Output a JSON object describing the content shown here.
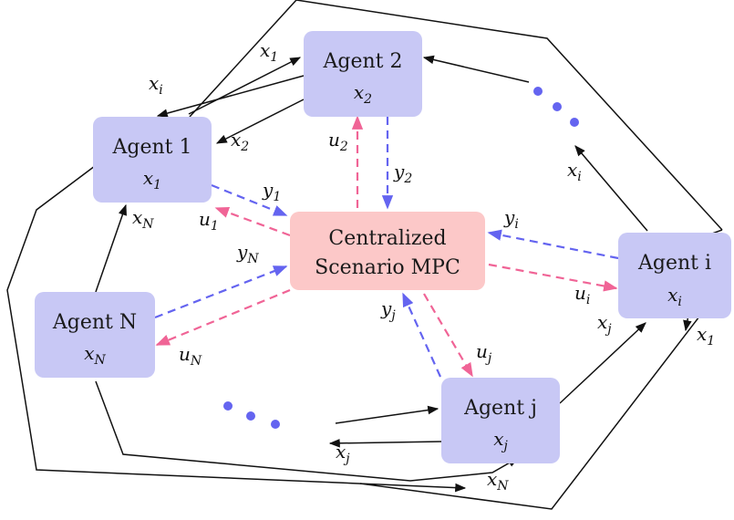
{
  "colors": {
    "agent_fill": "#c8c8f5",
    "mpc_fill": "#fcc8c8",
    "measurement_arrow": "#6464f0",
    "input_arrow": "#f06496",
    "ellipsis_dot": "#6464f0",
    "line": "#111111"
  },
  "mpc": {
    "line1": "Centralized",
    "line2": "Scenario MPC"
  },
  "agents": {
    "a1": {
      "name": "Agent 1",
      "state": "x",
      "state_sub": "1"
    },
    "a2": {
      "name": "Agent 2",
      "state": "x",
      "state_sub": "2"
    },
    "ai": {
      "name": "Agent i",
      "state": "x",
      "state_sub": "i"
    },
    "aj": {
      "name": "Agent j",
      "state": "x",
      "state_sub": "j"
    },
    "aN": {
      "name": "Agent N",
      "state": "x",
      "state_sub": "N"
    }
  },
  "edge_labels": {
    "y1": {
      "v": "y",
      "s": "1"
    },
    "u1": {
      "v": "u",
      "s": "1"
    },
    "y2": {
      "v": "y",
      "s": "2"
    },
    "u2": {
      "v": "u",
      "s": "2"
    },
    "yi": {
      "v": "y",
      "s": "i"
    },
    "ui": {
      "v": "u",
      "s": "i"
    },
    "yj": {
      "v": "y",
      "s": "j"
    },
    "uj": {
      "v": "u",
      "s": "j"
    },
    "yN": {
      "v": "y",
      "s": "N"
    },
    "uN": {
      "v": "u",
      "s": "N"
    },
    "x1_top": {
      "v": "x",
      "s": "1"
    },
    "xi_top": {
      "v": "x",
      "s": "i"
    },
    "x2_left": {
      "v": "x",
      "s": "2"
    },
    "xN_left": {
      "v": "x",
      "s": "N"
    },
    "xi_right": {
      "v": "x",
      "s": "i"
    },
    "xj_right": {
      "v": "x",
      "s": "j"
    },
    "x1_right": {
      "v": "x",
      "s": "1"
    },
    "xj_bottom": {
      "v": "x",
      "s": "j"
    },
    "xN_bottom": {
      "v": "x",
      "s": "N"
    }
  }
}
